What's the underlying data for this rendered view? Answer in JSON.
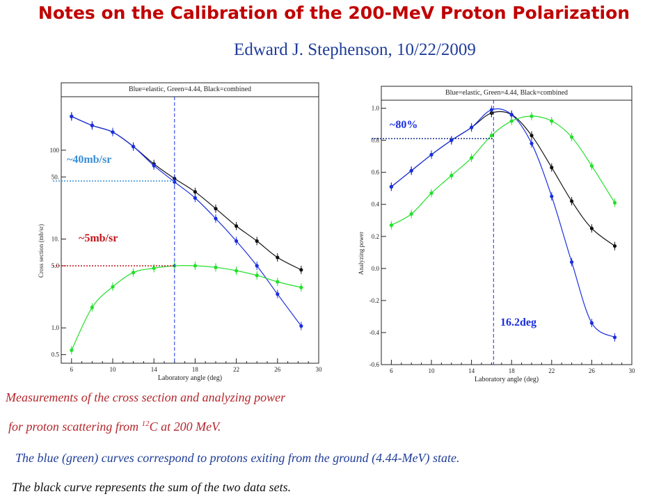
{
  "slide": {
    "title": "Notes on the Calibration of the 200-MeV Proton Polarization",
    "author": "Edward J. Stephenson, 10/22/2009"
  },
  "caption": {
    "line1": "Measurements of the cross section and analyzing power",
    "line2_pre": "for proton scattering from ",
    "line2_sup": "12",
    "line2_post": "C at 200 MeV.",
    "line3": "The blue (green) curves correspond to protons exiting from the ground (4.44-MeV) state.",
    "line4": "The black curve represents the sum of the two data sets."
  },
  "colors": {
    "title": "#c00000",
    "author": "#1f3d99",
    "elastic": "#1a2ee0",
    "inelastic": "#22e02a",
    "combined": "#111111",
    "annot": "#3a8fd6"
  },
  "chart_data": [
    {
      "type": "line",
      "yscale": "log",
      "header": "Blue=elastic, Green=4.44, Black=combined",
      "xlabel": "Laboratory angle (deg)",
      "ylabel": "Cross section (mb/sr)",
      "xlim": [
        5,
        30
      ],
      "ylim": [
        0.4,
        400
      ],
      "xticks": [
        6,
        10,
        14,
        18,
        22,
        26,
        30
      ],
      "yticks": [
        0.5,
        1.0,
        5.0,
        10,
        50,
        100
      ],
      "ytick_labels": [
        "0.5",
        "1.0",
        "5.0",
        "10.",
        "50.",
        "100"
      ],
      "vline_x": 16,
      "annotations": [
        {
          "text": "~40mb/sr",
          "y": 45
        },
        {
          "text": "~5mb/sr",
          "y": 5
        }
      ],
      "series": [
        {
          "color": "#111111",
          "x": [
            6,
            8,
            10,
            12,
            14,
            16,
            18,
            20,
            22,
            24,
            26,
            28.3
          ],
          "y": [
            240,
            190,
            160,
            110,
            70,
            48,
            34,
            22,
            14,
            9.5,
            6.2,
            4.5
          ]
        },
        {
          "color": "#1a2ee0",
          "x": [
            6,
            8,
            10,
            12,
            14,
            16,
            18,
            20,
            22,
            24,
            26,
            28.3
          ],
          "y": [
            240,
            190,
            160,
            110,
            67,
            44,
            29,
            17,
            9.5,
            5,
            2.4,
            1.05
          ]
        },
        {
          "color": "#22e02a",
          "x": [
            6,
            8,
            10,
            12,
            14,
            16,
            18,
            20,
            22,
            24,
            26,
            28.3
          ],
          "y": [
            0.56,
            1.7,
            2.9,
            4.2,
            4.7,
            5.0,
            5.0,
            4.8,
            4.4,
            3.9,
            3.3,
            2.85
          ]
        }
      ]
    },
    {
      "type": "line",
      "header": "Blue=elastic, Green=4.44, Black=combined",
      "xlabel": "Laboratory angle (deg)",
      "ylabel": "Analyzing power",
      "xlim": [
        5,
        30
      ],
      "ylim": [
        -0.6,
        1.05
      ],
      "xticks": [
        6,
        10,
        14,
        18,
        22,
        26,
        30
      ],
      "yticks": [
        -0.6,
        -0.4,
        -0.2,
        0.0,
        0.2,
        0.4,
        0.6,
        0.8,
        1.0
      ],
      "ytick_labels": [
        "-0.6",
        "-0.4",
        "-0.2",
        "0.0",
        "0.2",
        "0.4",
        "0.6",
        "0.8",
        "1.0"
      ],
      "vline_x": 16.2,
      "hline_y": 0.81,
      "annotations": [
        {
          "text": "~80%",
          "y": 0.87
        },
        {
          "text": "16.2deg",
          "y": -0.33
        }
      ],
      "series": [
        {
          "color": "#111111",
          "x": [
            6,
            8,
            10,
            12,
            14,
            16,
            18,
            20,
            22,
            24,
            26,
            28.3
          ],
          "y": [
            0.51,
            0.61,
            0.71,
            0.8,
            0.88,
            0.97,
            0.96,
            0.83,
            0.63,
            0.42,
            0.25,
            0.14
          ]
        },
        {
          "color": "#1a2ee0",
          "x": [
            6,
            8,
            10,
            12,
            14,
            16,
            18,
            20,
            22,
            24,
            26,
            28.3
          ],
          "y": [
            0.51,
            0.61,
            0.71,
            0.8,
            0.88,
            0.99,
            0.96,
            0.78,
            0.45,
            0.04,
            -0.34,
            -0.43
          ]
        },
        {
          "color": "#22e02a",
          "x": [
            6,
            8,
            10,
            12,
            14,
            16,
            18,
            20,
            22,
            24,
            26,
            28.3
          ],
          "y": [
            0.27,
            0.34,
            0.47,
            0.58,
            0.69,
            0.83,
            0.92,
            0.95,
            0.92,
            0.82,
            0.64,
            0.41
          ]
        }
      ]
    }
  ]
}
